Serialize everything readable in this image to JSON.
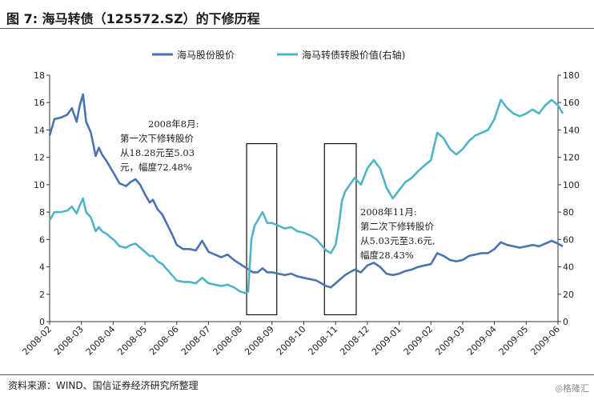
{
  "header": {
    "title": "图 7:  海马转债（125572.SZ）的下修历程"
  },
  "footer": {
    "source": "资料来源：WIND、国信证券经济研究所整理",
    "watermark": "◎格隆汇"
  },
  "chart_data": {
    "type": "line",
    "colors": {
      "stock": "#4a74b0",
      "bond": "#50b4c6"
    },
    "x_ticks": [
      "2008-02",
      "2008-03",
      "2008-04",
      "2008-05",
      "2008-06",
      "2008-07",
      "2008-08",
      "2008-09",
      "2008-10",
      "2008-11",
      "2008-12",
      "2009-01",
      "2009-02",
      "2009-03",
      "2009-04",
      "2009-05",
      "2009-06"
    ],
    "y_left": {
      "min": 0,
      "max": 18,
      "ticks": [
        0,
        2,
        4,
        6,
        8,
        10,
        12,
        14,
        16,
        18
      ]
    },
    "y_right": {
      "min": 0,
      "max": 180,
      "ticks": [
        0,
        20,
        40,
        60,
        80,
        100,
        120,
        140,
        160,
        180
      ]
    },
    "series": [
      {
        "name": "海马股份股价",
        "axis": "left",
        "points": [
          [
            0.0,
            13.6
          ],
          [
            0.15,
            14.8
          ],
          [
            0.35,
            14.9
          ],
          [
            0.55,
            15.1
          ],
          [
            0.7,
            15.6
          ],
          [
            0.85,
            14.6
          ],
          [
            0.95,
            15.8
          ],
          [
            1.05,
            16.6
          ],
          [
            1.15,
            14.6
          ],
          [
            1.3,
            13.8
          ],
          [
            1.45,
            12.1
          ],
          [
            1.55,
            12.7
          ],
          [
            1.65,
            12.2
          ],
          [
            1.8,
            11.7
          ],
          [
            1.95,
            11.1
          ],
          [
            2.05,
            10.7
          ],
          [
            2.2,
            10.1
          ],
          [
            2.4,
            9.9
          ],
          [
            2.55,
            10.2
          ],
          [
            2.7,
            10.4
          ],
          [
            2.85,
            10.0
          ],
          [
            3.0,
            9.3
          ],
          [
            3.15,
            8.7
          ],
          [
            3.25,
            8.9
          ],
          [
            3.4,
            8.2
          ],
          [
            3.55,
            7.8
          ],
          [
            3.7,
            7.1
          ],
          [
            3.85,
            6.4
          ],
          [
            4.0,
            5.6
          ],
          [
            4.2,
            5.3
          ],
          [
            4.4,
            5.3
          ],
          [
            4.6,
            5.2
          ],
          [
            4.8,
            5.9
          ],
          [
            5.0,
            5.1
          ],
          [
            5.2,
            4.9
          ],
          [
            5.4,
            4.7
          ],
          [
            5.6,
            4.9
          ],
          [
            5.8,
            4.5
          ],
          [
            6.0,
            4.2
          ],
          [
            6.2,
            3.9
          ],
          [
            6.4,
            3.6
          ],
          [
            6.55,
            3.6
          ],
          [
            6.7,
            3.9
          ],
          [
            6.85,
            3.6
          ],
          [
            7.0,
            3.6
          ],
          [
            7.2,
            3.5
          ],
          [
            7.4,
            3.4
          ],
          [
            7.6,
            3.5
          ],
          [
            7.8,
            3.3
          ],
          [
            8.0,
            3.2
          ],
          [
            8.2,
            3.1
          ],
          [
            8.4,
            3.0
          ],
          [
            8.55,
            2.8
          ],
          [
            8.7,
            2.6
          ],
          [
            8.85,
            2.5
          ],
          [
            9.0,
            2.8
          ],
          [
            9.15,
            3.1
          ],
          [
            9.3,
            3.4
          ],
          [
            9.45,
            3.6
          ],
          [
            9.6,
            3.8
          ],
          [
            9.8,
            3.6
          ],
          [
            10.0,
            4.1
          ],
          [
            10.2,
            4.3
          ],
          [
            10.4,
            4.0
          ],
          [
            10.6,
            3.5
          ],
          [
            10.8,
            3.4
          ],
          [
            11.0,
            3.5
          ],
          [
            11.2,
            3.7
          ],
          [
            11.4,
            3.8
          ],
          [
            11.6,
            4.0
          ],
          [
            11.8,
            4.1
          ],
          [
            12.0,
            4.2
          ],
          [
            12.2,
            5.0
          ],
          [
            12.4,
            4.8
          ],
          [
            12.6,
            4.5
          ],
          [
            12.8,
            4.4
          ],
          [
            13.0,
            4.5
          ],
          [
            13.2,
            4.8
          ],
          [
            13.4,
            4.9
          ],
          [
            13.6,
            5.0
          ],
          [
            13.8,
            5.0
          ],
          [
            14.0,
            5.3
          ],
          [
            14.2,
            5.8
          ],
          [
            14.4,
            5.6
          ],
          [
            14.6,
            5.5
          ],
          [
            14.8,
            5.4
          ],
          [
            15.0,
            5.5
          ],
          [
            15.2,
            5.6
          ],
          [
            15.4,
            5.5
          ],
          [
            15.6,
            5.7
          ],
          [
            15.8,
            5.9
          ],
          [
            16.0,
            5.7
          ],
          [
            16.15,
            5.5
          ]
        ]
      },
      {
        "name": "海马转债转股价值(右轴)",
        "axis": "right",
        "points": [
          [
            0.0,
            74
          ],
          [
            0.15,
            80
          ],
          [
            0.35,
            80
          ],
          [
            0.55,
            81
          ],
          [
            0.7,
            84
          ],
          [
            0.85,
            79
          ],
          [
            0.95,
            85
          ],
          [
            1.05,
            90
          ],
          [
            1.15,
            80
          ],
          [
            1.3,
            76
          ],
          [
            1.45,
            66
          ],
          [
            1.55,
            69
          ],
          [
            1.65,
            66
          ],
          [
            1.8,
            64
          ],
          [
            1.95,
            61
          ],
          [
            2.05,
            59
          ],
          [
            2.2,
            55
          ],
          [
            2.4,
            54
          ],
          [
            2.55,
            56
          ],
          [
            2.7,
            57
          ],
          [
            2.85,
            54
          ],
          [
            3.0,
            51
          ],
          [
            3.15,
            48
          ],
          [
            3.25,
            48
          ],
          [
            3.4,
            44
          ],
          [
            3.55,
            42
          ],
          [
            3.7,
            38
          ],
          [
            3.85,
            34
          ],
          [
            4.0,
            30
          ],
          [
            4.2,
            29
          ],
          [
            4.4,
            29
          ],
          [
            4.6,
            28
          ],
          [
            4.8,
            32
          ],
          [
            5.0,
            28
          ],
          [
            5.2,
            27
          ],
          [
            5.4,
            26
          ],
          [
            5.6,
            27
          ],
          [
            5.8,
            25
          ],
          [
            6.0,
            22
          ],
          [
            6.15,
            21
          ],
          [
            6.25,
            22
          ],
          [
            6.35,
            60
          ],
          [
            6.45,
            70
          ],
          [
            6.55,
            74
          ],
          [
            6.7,
            80
          ],
          [
            6.85,
            72
          ],
          [
            7.0,
            72
          ],
          [
            7.2,
            70
          ],
          [
            7.4,
            68
          ],
          [
            7.6,
            69
          ],
          [
            7.8,
            66
          ],
          [
            8.0,
            65
          ],
          [
            8.2,
            63
          ],
          [
            8.4,
            60
          ],
          [
            8.55,
            56
          ],
          [
            8.7,
            52
          ],
          [
            8.85,
            50
          ],
          [
            9.0,
            56
          ],
          [
            9.1,
            70
          ],
          [
            9.2,
            88
          ],
          [
            9.3,
            95
          ],
          [
            9.45,
            100
          ],
          [
            9.6,
            105
          ],
          [
            9.8,
            100
          ],
          [
            10.0,
            112
          ],
          [
            10.2,
            118
          ],
          [
            10.4,
            112
          ],
          [
            10.6,
            98
          ],
          [
            10.8,
            90
          ],
          [
            11.0,
            96
          ],
          [
            11.2,
            102
          ],
          [
            11.4,
            105
          ],
          [
            11.6,
            110
          ],
          [
            11.8,
            114
          ],
          [
            12.0,
            118
          ],
          [
            12.2,
            138
          ],
          [
            12.4,
            134
          ],
          [
            12.6,
            126
          ],
          [
            12.8,
            122
          ],
          [
            13.0,
            126
          ],
          [
            13.2,
            132
          ],
          [
            13.4,
            136
          ],
          [
            13.6,
            138
          ],
          [
            13.8,
            140
          ],
          [
            14.0,
            148
          ],
          [
            14.2,
            162
          ],
          [
            14.4,
            156
          ],
          [
            14.6,
            152
          ],
          [
            14.8,
            150
          ],
          [
            15.0,
            152
          ],
          [
            15.2,
            155
          ],
          [
            15.4,
            152
          ],
          [
            15.6,
            158
          ],
          [
            15.8,
            162
          ],
          [
            16.0,
            158
          ],
          [
            16.15,
            152
          ]
        ]
      }
    ],
    "highlight_boxes": [
      {
        "x_start": 6.2,
        "x_end": 7.15,
        "y_top": 13
      },
      {
        "x_start": 8.65,
        "x_end": 9.65,
        "y_top": 13
      }
    ],
    "annotations": [
      {
        "lines": [
          "2008年8月:",
          "第一次下修转股价",
          "从18.28元至5.03",
          "元，幅度72.48%"
        ]
      },
      {
        "lines": [
          "2008年11月:",
          "第二次下修转股价",
          "从5.03元至3.6元,",
          "幅度28.43%"
        ]
      }
    ],
    "legend_placement": "top-center"
  }
}
